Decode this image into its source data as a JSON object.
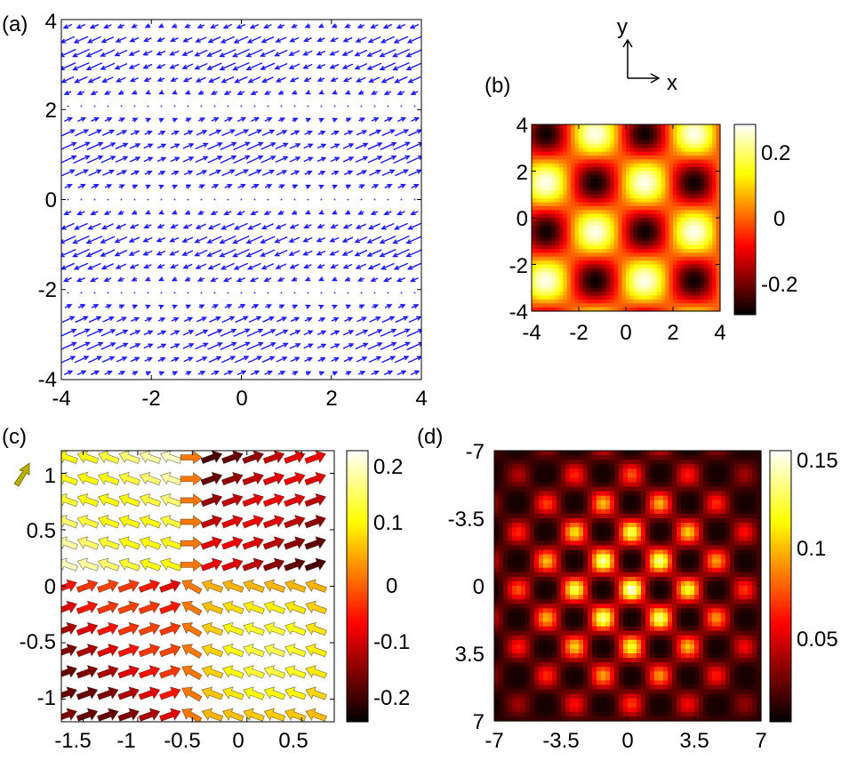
{
  "chart_data": [
    {
      "panel_label": "(a)",
      "type": "quiver",
      "xlim": [
        -4,
        4
      ],
      "ylim": [
        -4,
        4
      ],
      "xticks": [
        "-4",
        "-2",
        "0",
        "2",
        "4"
      ],
      "yticks": [
        "4",
        "2",
        "0",
        "-2",
        "-4"
      ],
      "color": "#1a1aff",
      "grid": false
    },
    {
      "panel_label": "(b)",
      "type": "heatmap",
      "xlim": [
        -4,
        4
      ],
      "ylim": [
        -4,
        4
      ],
      "xticks": [
        "-4",
        "-2",
        "0",
        "2",
        "4"
      ],
      "yticks": [
        "4",
        "2",
        "0",
        "-2",
        "-4"
      ],
      "colorbar_ticks": [
        "0.2",
        "0",
        "-0.2"
      ],
      "colorbar_range": [
        -0.28,
        0.28
      ],
      "colormap": "hot"
    },
    {
      "panel_label": "(c)",
      "type": "quiver",
      "xlim": [
        -1.7,
        0.8
      ],
      "ylim": [
        -1.2,
        1.2
      ],
      "xticks": [
        "-1.5",
        "-1",
        "-0.5",
        "0",
        "0.5"
      ],
      "yticks": [
        "1",
        "0.5",
        "0",
        "-0.5",
        "-1"
      ],
      "colorbar_ticks": [
        "0.2",
        "0.1",
        "0",
        "-0.1",
        "-0.2"
      ],
      "colorbar_range": [
        -0.25,
        0.25
      ],
      "colormap": "hot"
    },
    {
      "panel_label": "(d)",
      "type": "heatmap",
      "xlim": [
        -7,
        7
      ],
      "ylim": [
        -7,
        7
      ],
      "xticks": [
        "-7",
        "-3.5",
        "0",
        "3.5",
        "7"
      ],
      "yticks": [
        "-7",
        "-3.5",
        "0",
        "3.5",
        "7"
      ],
      "colorbar_ticks": [
        "0.15",
        "0.1",
        "0.05"
      ],
      "colorbar_range": [
        0,
        0.16
      ],
      "colormap": "hot"
    }
  ],
  "axes_indicator": {
    "x": "x",
    "y": "y"
  }
}
